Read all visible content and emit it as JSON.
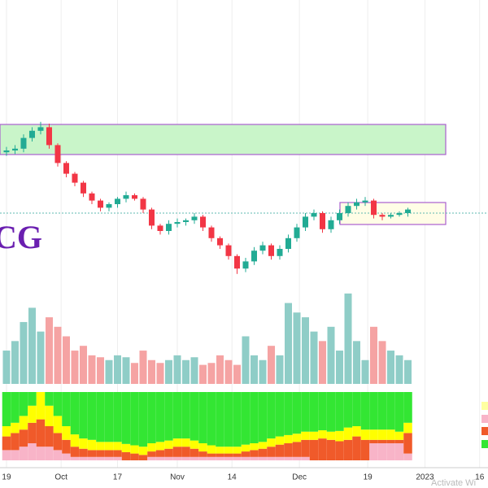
{
  "ticker": "CG",
  "watermark": "Activate Wi",
  "chart_data": [
    {
      "type": "candlestick",
      "xlim": [
        -0.76,
        56.38
      ],
      "ylim": [
        0,
        100
      ],
      "grid": true,
      "up_color": "#22ab94",
      "down_color": "#f23645",
      "xticks": [
        {
          "value": 0,
          "label": "19"
        },
        {
          "value": 6.4,
          "label": "Oct"
        },
        {
          "value": 13,
          "label": "17"
        },
        {
          "value": 20,
          "label": "Nov"
        },
        {
          "value": 26.4,
          "label": "14"
        },
        {
          "value": 34.3,
          "label": "Dec"
        },
        {
          "value": 42.3,
          "label": "19"
        },
        {
          "value": 49,
          "label": "2023"
        },
        {
          "value": 55.4,
          "label": "16"
        }
      ],
      "x": [
        0,
        1,
        2,
        3,
        4,
        5,
        6,
        7,
        8,
        9,
        10,
        11,
        12,
        13,
        14,
        15,
        16,
        17,
        18,
        19,
        20,
        21,
        22,
        23,
        24,
        25,
        26,
        27,
        28,
        29,
        30,
        31,
        32,
        33,
        34,
        35,
        36,
        37,
        38,
        39,
        40,
        41,
        42,
        43,
        44,
        45,
        46,
        47
      ],
      "open": [
        74,
        75,
        76,
        82,
        86,
        88,
        78,
        68,
        62,
        57,
        51,
        47,
        43,
        45,
        48,
        50,
        48,
        42,
        33,
        30,
        34,
        35,
        36,
        38,
        32,
        26,
        22,
        16,
        9,
        13,
        19,
        22,
        16,
        20,
        26,
        32,
        38,
        40,
        31,
        36,
        40,
        44,
        46,
        47,
        39,
        38,
        39,
        40
      ],
      "high": [
        77,
        78,
        84,
        88,
        91,
        90,
        79,
        69,
        63,
        58,
        52,
        48,
        46,
        49,
        52,
        51,
        49,
        43,
        34,
        36,
        37,
        37,
        40,
        39,
        33,
        27,
        23,
        17,
        15,
        21,
        24,
        23,
        22,
        28,
        34,
        40,
        42,
        41,
        38,
        42,
        46,
        48,
        49,
        48,
        40,
        40,
        41,
        43
      ],
      "low": [
        72,
        73,
        74,
        80,
        84,
        76,
        66,
        60,
        55,
        49,
        45,
        41,
        41,
        43,
        46,
        47,
        40,
        31,
        28,
        28,
        32,
        33,
        34,
        30,
        24,
        20,
        14,
        6,
        7,
        11,
        17,
        14,
        14,
        18,
        24,
        30,
        36,
        29,
        29,
        34,
        38,
        42,
        44,
        37,
        36,
        37,
        38,
        38
      ],
      "close": [
        75,
        76,
        82,
        86,
        88,
        78,
        68,
        62,
        57,
        51,
        47,
        43,
        45,
        48,
        50,
        48,
        42,
        33,
        30,
        34,
        35,
        36,
        38,
        32,
        26,
        22,
        16,
        9,
        13,
        19,
        22,
        16,
        20,
        26,
        32,
        38,
        40,
        31,
        36,
        40,
        44,
        46,
        47,
        39,
        38,
        39,
        40,
        42
      ]
    },
    {
      "type": "bar",
      "ylim": [
        0,
        100
      ],
      "up_color": "#8fcdc7",
      "down_color": "#f5a3a3",
      "values": [
        35,
        45,
        65,
        80,
        55,
        70,
        60,
        50,
        35,
        40,
        30,
        28,
        25,
        30,
        28,
        22,
        35,
        25,
        22,
        25,
        30,
        25,
        28,
        20,
        22,
        30,
        25,
        20,
        50,
        30,
        25,
        40,
        30,
        85,
        75,
        70,
        55,
        45,
        60,
        35,
        95,
        45,
        25,
        60,
        45,
        35,
        30,
        25
      ]
    },
    {
      "type": "stacked-bar",
      "ylim": [
        0,
        100
      ],
      "series": [
        {
          "color": "#f8b4c8",
          "values": [
            15,
            15,
            20,
            25,
            20,
            20,
            15,
            10,
            5,
            5,
            5,
            5,
            5,
            5,
            0,
            0,
            0,
            5,
            5,
            5,
            5,
            5,
            5,
            5,
            5,
            5,
            5,
            5,
            5,
            5,
            5,
            5,
            5,
            5,
            5,
            5,
            0,
            0,
            0,
            0,
            0,
            0,
            0,
            25,
            25,
            25,
            25,
            10
          ]
        },
        {
          "color": "#f05a2a",
          "values": [
            20,
            25,
            25,
            30,
            40,
            30,
            25,
            20,
            15,
            12,
            10,
            10,
            10,
            10,
            12,
            10,
            8,
            8,
            10,
            12,
            15,
            15,
            12,
            8,
            5,
            5,
            5,
            5,
            8,
            10,
            12,
            15,
            18,
            20,
            22,
            25,
            30,
            32,
            30,
            28,
            30,
            35,
            30,
            5,
            5,
            5,
            5,
            30
          ]
        },
        {
          "color": "#ffff00",
          "values": [
            15,
            15,
            20,
            25,
            40,
            30,
            25,
            20,
            18,
            15,
            15,
            12,
            12,
            12,
            12,
            12,
            12,
            12,
            12,
            12,
            12,
            12,
            12,
            12,
            12,
            10,
            10,
            10,
            10,
            10,
            10,
            12,
            12,
            12,
            12,
            12,
            12,
            12,
            12,
            15,
            18,
            15,
            15,
            15,
            15,
            15,
            12,
            15
          ]
        },
        {
          "color": "#33e633",
          "values": [
            50,
            45,
            35,
            20,
            0,
            20,
            35,
            50,
            62,
            68,
            70,
            73,
            73,
            73,
            76,
            78,
            80,
            75,
            73,
            71,
            68,
            68,
            71,
            75,
            78,
            80,
            80,
            80,
            77,
            75,
            73,
            68,
            65,
            63,
            61,
            58,
            58,
            56,
            58,
            57,
            52,
            50,
            55,
            55,
            55,
            55,
            58,
            45
          ]
        }
      ]
    }
  ]
}
